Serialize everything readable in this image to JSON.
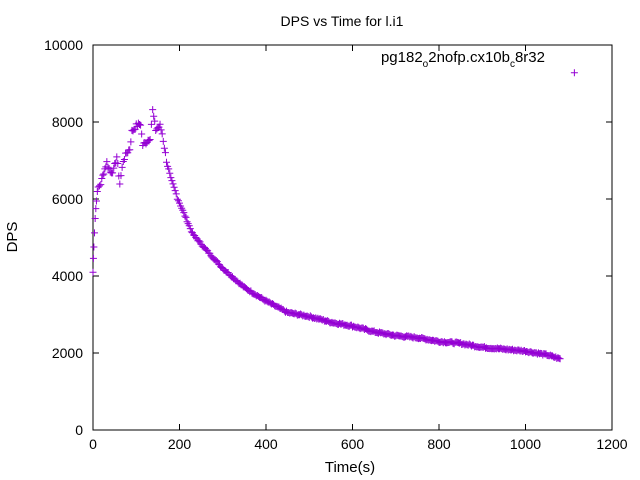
{
  "chart_data": {
    "type": "scatter",
    "title": "DPS vs Time for l.i1",
    "xlabel": "Time(s)",
    "ylabel": "DPS",
    "xlim": [
      0,
      1200
    ],
    "ylim": [
      0,
      10000
    ],
    "xticks": [
      "0",
      "200",
      "400",
      "600",
      "800",
      "1000",
      "1200"
    ],
    "yticks": [
      "0",
      "2000",
      "4000",
      "6000",
      "8000",
      "10000"
    ],
    "grid": false,
    "legend": {
      "placement": "top-right",
      "label_parts": [
        "pg182",
        "o",
        "2nofp.cx10b",
        "c",
        "8r32"
      ]
    },
    "series": [
      {
        "name": "pg182_o2nofp.cx10b_c8r32",
        "color": "#9400d3",
        "marker": "plus",
        "anchors": [
          [
            0,
            4100
          ],
          [
            2,
            4800
          ],
          [
            5,
            5500
          ],
          [
            8,
            6000
          ],
          [
            12,
            6300
          ],
          [
            18,
            6400
          ],
          [
            25,
            6700
          ],
          [
            32,
            6950
          ],
          [
            40,
            6700
          ],
          [
            48,
            6750
          ],
          [
            55,
            7100
          ],
          [
            62,
            6400
          ],
          [
            70,
            7000
          ],
          [
            78,
            7200
          ],
          [
            85,
            7300
          ],
          [
            90,
            7750
          ],
          [
            100,
            7900
          ],
          [
            110,
            7950
          ],
          [
            115,
            7400
          ],
          [
            125,
            7500
          ],
          [
            132,
            7600
          ],
          [
            138,
            8300
          ],
          [
            145,
            7800
          ],
          [
            155,
            7900
          ],
          [
            160,
            7700
          ],
          [
            170,
            7000
          ],
          [
            180,
            6500
          ],
          [
            200,
            5900
          ],
          [
            230,
            5100
          ],
          [
            260,
            4700
          ],
          [
            300,
            4200
          ],
          [
            350,
            3700
          ],
          [
            400,
            3350
          ],
          [
            450,
            3050
          ],
          [
            500,
            2950
          ],
          [
            550,
            2800
          ],
          [
            600,
            2700
          ],
          [
            650,
            2550
          ],
          [
            700,
            2450
          ],
          [
            750,
            2400
          ],
          [
            800,
            2300
          ],
          [
            850,
            2250
          ],
          [
            900,
            2150
          ],
          [
            950,
            2100
          ],
          [
            1000,
            2050
          ],
          [
            1050,
            1950
          ],
          [
            1080,
            1850
          ]
        ]
      }
    ]
  }
}
